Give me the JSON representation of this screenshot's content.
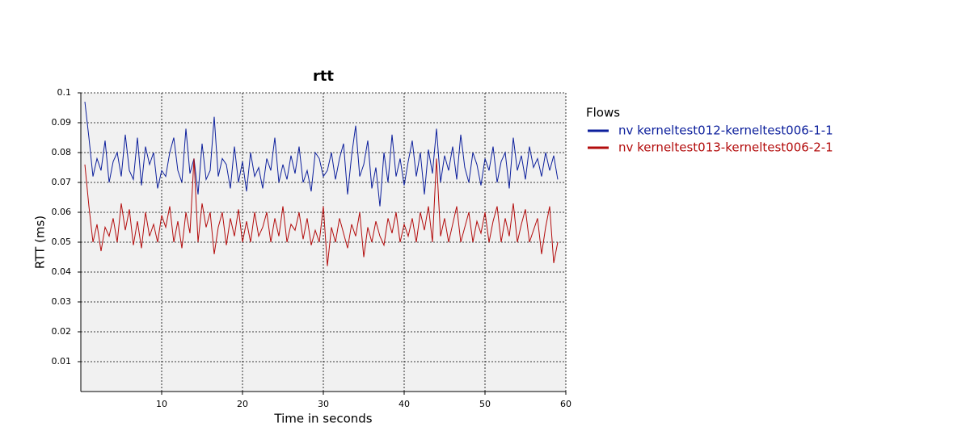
{
  "chart_data": {
    "type": "line",
    "title": "rtt",
    "x_label": "Time in seconds",
    "y_label": "RTT (ms)",
    "xlim": [
      0,
      60
    ],
    "xticks": [
      10,
      20,
      30,
      40,
      50,
      60
    ],
    "ylim": [
      0,
      0.1
    ],
    "yticks": [
      0.01,
      0.02,
      0.03,
      0.04,
      0.05,
      0.06,
      0.07,
      0.08,
      0.09,
      0.1
    ],
    "grid": true,
    "legend_title": "Flows",
    "legend_position": "right",
    "x": [
      0.5,
      1,
      1.5,
      2,
      2.5,
      3,
      3.5,
      4,
      4.5,
      5,
      5.5,
      6,
      6.5,
      7,
      7.5,
      8,
      8.5,
      9,
      9.5,
      10,
      10.5,
      11,
      11.5,
      12,
      12.5,
      13,
      13.5,
      14,
      14.5,
      15,
      15.5,
      16,
      16.5,
      17,
      17.5,
      18,
      18.5,
      19,
      19.5,
      20,
      20.5,
      21,
      21.5,
      22,
      22.5,
      23,
      23.5,
      24,
      24.5,
      25,
      25.5,
      26,
      26.5,
      27,
      27.5,
      28,
      28.5,
      29,
      29.5,
      30,
      30.5,
      31,
      31.5,
      32,
      32.5,
      33,
      33.5,
      34,
      34.5,
      35,
      35.5,
      36,
      36.5,
      37,
      37.5,
      38,
      38.5,
      39,
      39.5,
      40,
      40.5,
      41,
      41.5,
      42,
      42.5,
      43,
      43.5,
      44,
      44.5,
      45,
      45.5,
      46,
      46.5,
      47,
      47.5,
      48,
      48.5,
      49,
      49.5,
      50,
      50.5,
      51,
      51.5,
      52,
      52.5,
      53,
      53.5,
      54,
      54.5,
      55,
      55.5,
      56,
      56.5,
      57,
      57.5,
      58,
      58.5,
      59
    ],
    "series": [
      {
        "name": "nv kerneltest012-kerneltest006-1-1",
        "color": "#0c1f9c",
        "values": [
          0.097,
          0.085,
          0.072,
          0.078,
          0.074,
          0.084,
          0.07,
          0.077,
          0.08,
          0.072,
          0.086,
          0.074,
          0.071,
          0.085,
          0.069,
          0.082,
          0.076,
          0.08,
          0.068,
          0.074,
          0.072,
          0.08,
          0.085,
          0.074,
          0.07,
          0.088,
          0.073,
          0.078,
          0.066,
          0.083,
          0.071,
          0.074,
          0.092,
          0.072,
          0.078,
          0.076,
          0.068,
          0.082,
          0.07,
          0.077,
          0.067,
          0.08,
          0.072,
          0.075,
          0.068,
          0.078,
          0.074,
          0.085,
          0.07,
          0.076,
          0.071,
          0.079,
          0.073,
          0.082,
          0.07,
          0.074,
          0.067,
          0.08,
          0.078,
          0.072,
          0.074,
          0.08,
          0.071,
          0.078,
          0.083,
          0.066,
          0.079,
          0.089,
          0.072,
          0.076,
          0.084,
          0.068,
          0.075,
          0.062,
          0.08,
          0.07,
          0.086,
          0.072,
          0.078,
          0.069,
          0.077,
          0.084,
          0.072,
          0.08,
          0.066,
          0.081,
          0.073,
          0.088,
          0.07,
          0.079,
          0.074,
          0.082,
          0.071,
          0.086,
          0.075,
          0.07,
          0.08,
          0.076,
          0.069,
          0.078,
          0.074,
          0.082,
          0.07,
          0.077,
          0.08,
          0.068,
          0.085,
          0.074,
          0.079,
          0.071,
          0.082,
          0.075,
          0.078,
          0.072,
          0.08,
          0.074,
          0.079,
          0.071
        ]
      },
      {
        "name": "nv kerneltest013-kerneltest006-2-1",
        "color": "#b30c0c",
        "values": [
          0.076,
          0.062,
          0.05,
          0.056,
          0.047,
          0.055,
          0.052,
          0.058,
          0.05,
          0.063,
          0.054,
          0.061,
          0.049,
          0.057,
          0.048,
          0.06,
          0.052,
          0.056,
          0.05,
          0.059,
          0.055,
          0.062,
          0.05,
          0.057,
          0.048,
          0.06,
          0.053,
          0.078,
          0.05,
          0.063,
          0.055,
          0.06,
          0.046,
          0.055,
          0.06,
          0.049,
          0.058,
          0.052,
          0.061,
          0.05,
          0.057,
          0.05,
          0.06,
          0.052,
          0.055,
          0.06,
          0.05,
          0.058,
          0.052,
          0.062,
          0.05,
          0.056,
          0.054,
          0.06,
          0.051,
          0.058,
          0.049,
          0.054,
          0.05,
          0.062,
          0.042,
          0.055,
          0.05,
          0.058,
          0.053,
          0.048,
          0.056,
          0.052,
          0.06,
          0.045,
          0.055,
          0.05,
          0.057,
          0.052,
          0.049,
          0.058,
          0.053,
          0.06,
          0.05,
          0.056,
          0.052,
          0.058,
          0.05,
          0.06,
          0.054,
          0.062,
          0.05,
          0.078,
          0.052,
          0.058,
          0.05,
          0.056,
          0.062,
          0.05,
          0.055,
          0.06,
          0.05,
          0.057,
          0.053,
          0.06,
          0.05,
          0.057,
          0.062,
          0.05,
          0.058,
          0.052,
          0.063,
          0.05,
          0.056,
          0.061,
          0.05,
          0.054,
          0.058,
          0.046,
          0.055,
          0.062,
          0.043,
          0.05
        ]
      }
    ]
  }
}
